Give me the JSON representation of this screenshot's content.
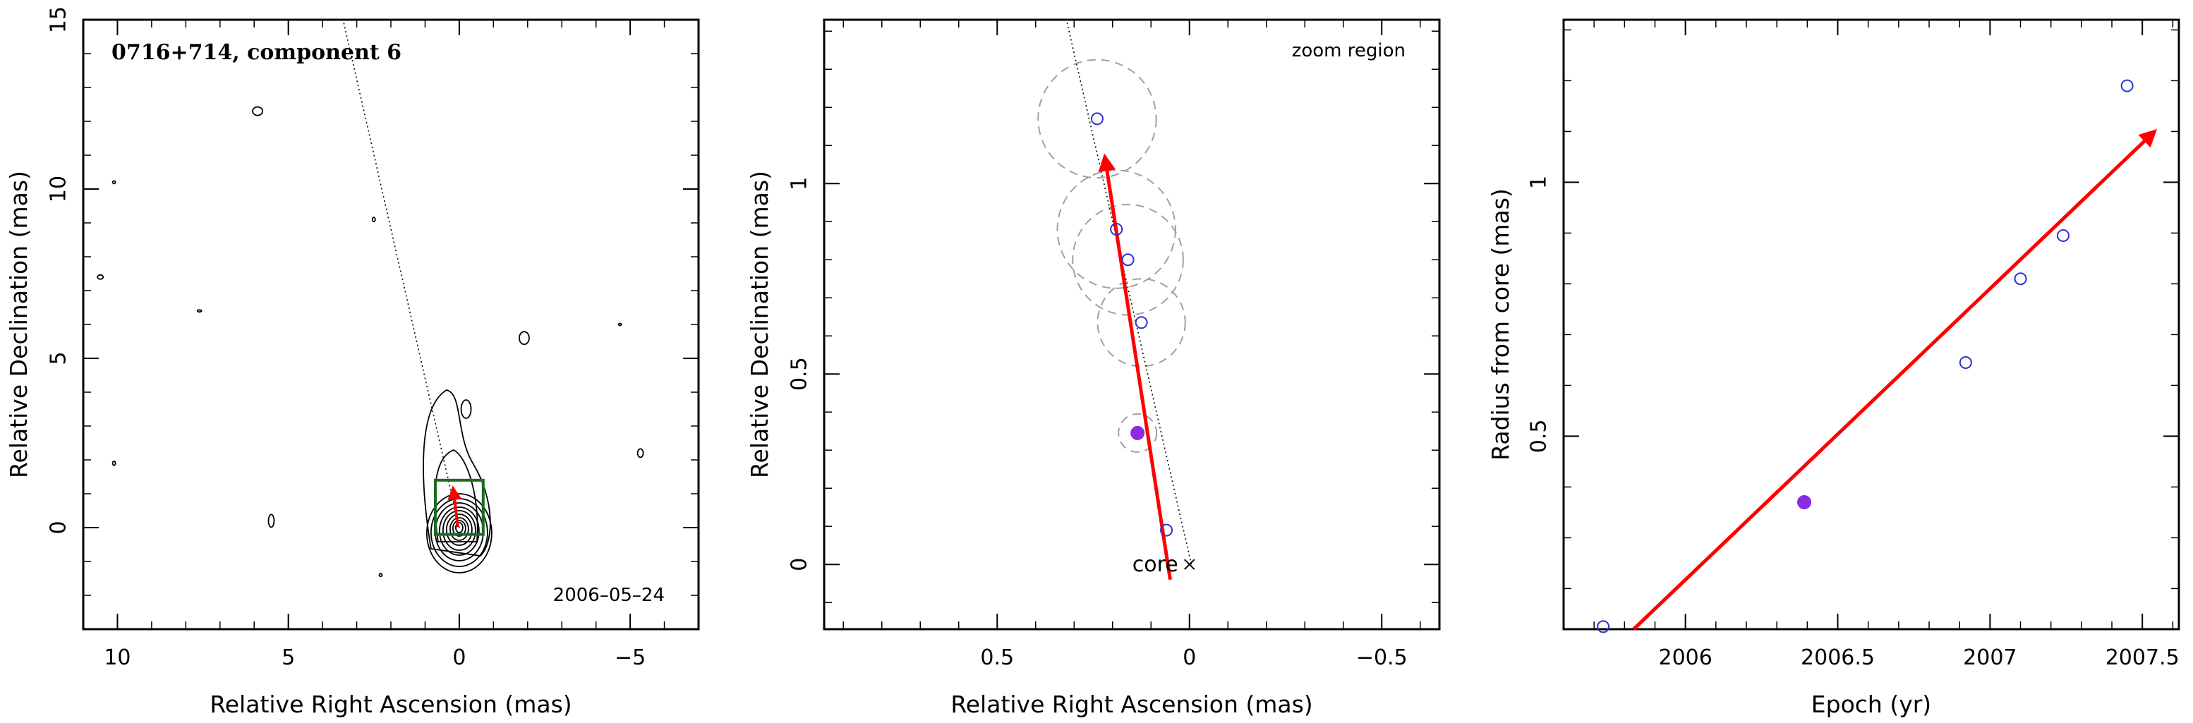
{
  "chart_data": [
    {
      "type": "contour",
      "title": "0716+714, component 6",
      "date_label": "2006–05–24",
      "xlabel": "Relative Right Ascension (mas)",
      "ylabel": "Relative Declination (mas)",
      "xlim": [
        11,
        -7
      ],
      "ylim": [
        -3,
        15
      ],
      "x_ticks": [
        10,
        5,
        0,
        -5
      ],
      "x_tick_labels": [
        "10",
        "5",
        "0",
        "−5"
      ],
      "y_ticks": [
        0,
        5,
        10,
        15
      ],
      "y_tick_labels": [
        "0",
        "5",
        "10",
        "15"
      ],
      "jet_axis": {
        "x": [
          0,
          3.4
        ],
        "y": [
          0,
          15
        ]
      },
      "zoom_box": {
        "x": [
          0.7,
          -0.7
        ],
        "y": [
          -0.2,
          1.4
        ]
      },
      "arrow": {
        "from": [
          0.04,
          0.02
        ],
        "to": [
          0.18,
          1.16
        ]
      },
      "colors": {
        "contour": "#000000",
        "zoom_box": "#1e6b1e",
        "arrow": "#ff0000"
      }
    },
    {
      "type": "scatter",
      "annotation": "zoom region",
      "core_label": "core",
      "xlabel": "Relative Right Ascension (mas)",
      "ylabel": "Relative Declination (mas)",
      "xlim": [
        0.95,
        -0.65
      ],
      "ylim": [
        -0.17,
        1.43
      ],
      "x_ticks": [
        0.5,
        0,
        -0.5
      ],
      "x_tick_labels": [
        "0.5",
        "0",
        "−0.5"
      ],
      "y_ticks": [
        0,
        0.5,
        1
      ],
      "y_tick_labels": [
        "0",
        "0.5",
        "1"
      ],
      "points": [
        {
          "x": 0.24,
          "y": 1.17,
          "err": 0.155,
          "filled": false
        },
        {
          "x": 0.19,
          "y": 0.88,
          "err": 0.155,
          "filled": false
        },
        {
          "x": 0.16,
          "y": 0.8,
          "err": 0.145,
          "filled": false
        },
        {
          "x": 0.125,
          "y": 0.635,
          "err": 0.115,
          "filled": false
        },
        {
          "x": 0.135,
          "y": 0.345,
          "err": 0.05,
          "filled": true
        },
        {
          "x": 0.06,
          "y": 0.09,
          "err": 0,
          "filled": false
        }
      ],
      "jet_axis": {
        "x": [
          -0.005,
          0.32
        ],
        "y": [
          0,
          1.43
        ]
      },
      "arrow": {
        "from": [
          0.05,
          -0.04
        ],
        "to": [
          0.22,
          1.07
        ]
      },
      "colors": {
        "point": "#2f2fd6",
        "filled_point": "#8a2be2",
        "error_circle": "#a0a0a0",
        "arrow": "#ff0000"
      }
    },
    {
      "type": "scatter",
      "xlabel": "Epoch (yr)",
      "ylabel": "Radius from core (mas)",
      "xlim": [
        2005.6,
        2007.62
      ],
      "ylim": [
        0.12,
        1.32
      ],
      "x_ticks": [
        2006,
        2006.5,
        2007,
        2007.5
      ],
      "x_tick_labels": [
        "2006",
        "2006.5",
        "2007",
        "2007.5"
      ],
      "y_ticks": [
        0.5,
        1
      ],
      "y_tick_labels": [
        "0.5",
        "1"
      ],
      "points": [
        {
          "x": 2005.73,
          "y": 0.125,
          "filled": false
        },
        {
          "x": 2006.39,
          "y": 0.37,
          "filled": true
        },
        {
          "x": 2006.92,
          "y": 0.645,
          "filled": false
        },
        {
          "x": 2007.1,
          "y": 0.81,
          "filled": false
        },
        {
          "x": 2007.24,
          "y": 0.895,
          "filled": false
        },
        {
          "x": 2007.45,
          "y": 1.19,
          "filled": false
        }
      ],
      "fit_line": {
        "x": [
          2005.83,
          2007.54
        ],
        "y": [
          0.12,
          1.1
        ]
      },
      "colors": {
        "point": "#2f2fd6",
        "filled_point": "#8a2be2",
        "fit_line": "#ff0000"
      }
    }
  ]
}
